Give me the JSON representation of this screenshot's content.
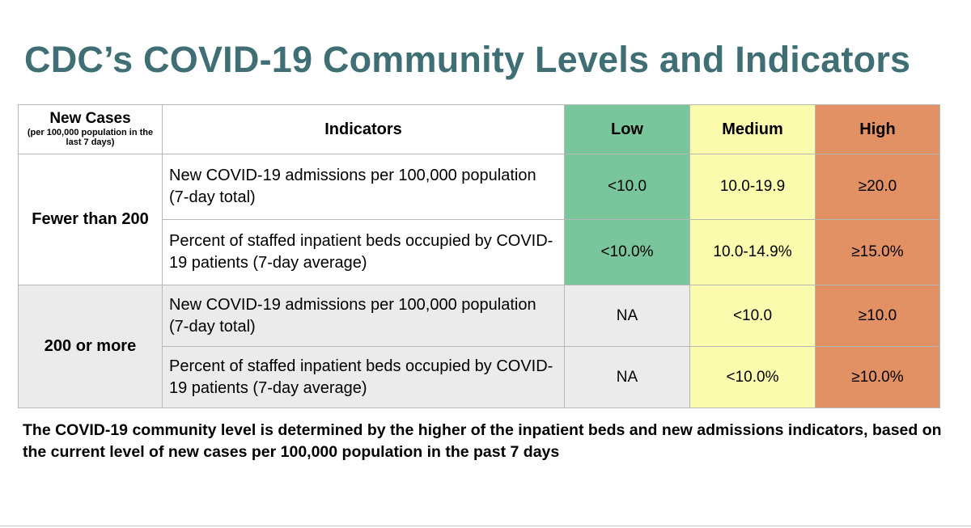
{
  "title": "CDC’s COVID-19 Community Levels and Indicators",
  "table": {
    "headers": {
      "cases_main": "New Cases",
      "cases_sub": "(per 100,000 population in the last 7 days)",
      "indicators": "Indicators",
      "low": "Low",
      "medium": "Medium",
      "high": "High"
    },
    "groups": [
      {
        "cases": "Fewer than 200",
        "rows": [
          {
            "indicator": "New COVID-19 admissions per 100,000 population (7-day total)",
            "low": "<10.0",
            "medium": "10.0-19.9",
            "high": "≥20.0"
          },
          {
            "indicator": "Percent of staffed inpatient beds occupied by COVID-19 patients (7-day average)",
            "low": "<10.0%",
            "medium": "10.0-14.9%",
            "high": "≥15.0%"
          }
        ]
      },
      {
        "cases": "200 or more",
        "rows": [
          {
            "indicator": "New COVID-19 admissions per 100,000 population (7-day total)",
            "low": "NA",
            "medium": "<10.0",
            "high": "≥10.0"
          },
          {
            "indicator": "Percent of staffed inpatient beds occupied by COVID-19 patients (7-day average)",
            "low": "NA",
            "medium": "<10.0%",
            "high": "≥10.0%"
          }
        ]
      }
    ]
  },
  "footnote": "The COVID-19 community level is determined by the higher of the inpatient beds and new admissions indicators, based on the current level of new cases per 100,000 population in the past 7 days",
  "colors": {
    "title": "#3f6f74",
    "low": "#79c59c",
    "medium": "#fbfbae",
    "high": "#e29165",
    "group_shade": "#ebebeb"
  }
}
